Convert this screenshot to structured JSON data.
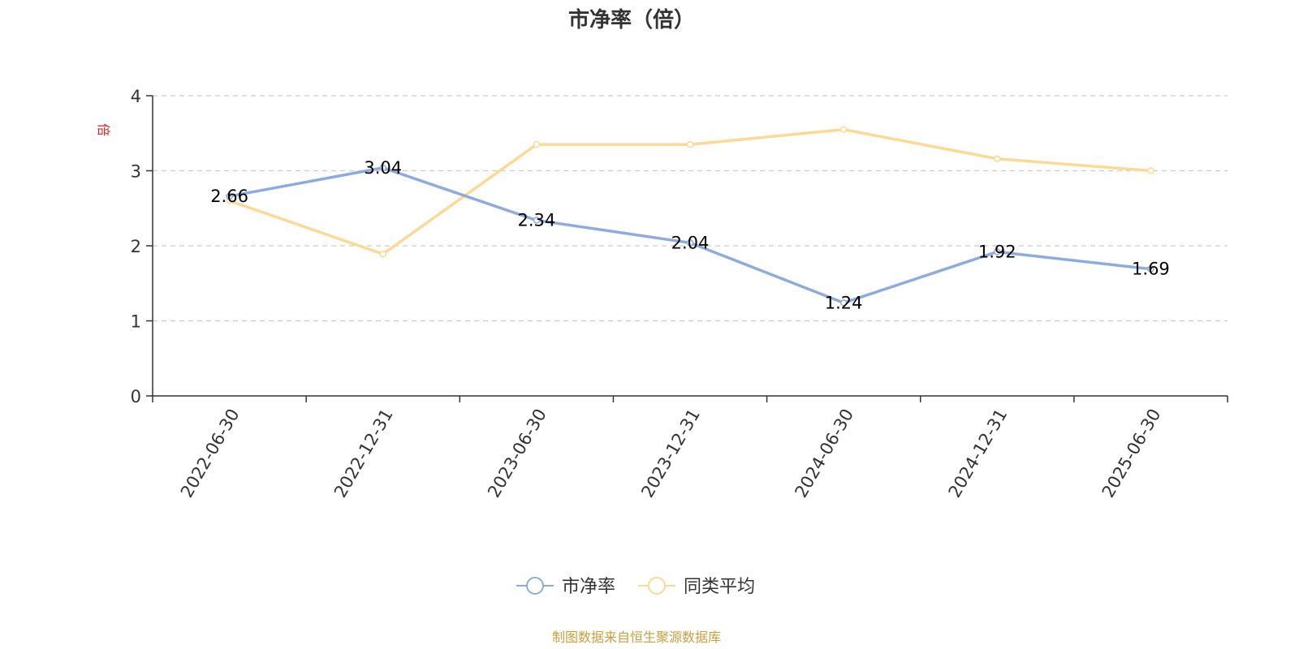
{
  "chart_data": {
    "type": "line",
    "title": "市净率（倍）",
    "unit_label": "倍",
    "x": [
      "2022-06-30",
      "2022-12-31",
      "2023-06-30",
      "2023-12-31",
      "2024-06-30",
      "2024-12-31",
      "2025-06-30"
    ],
    "ylim": [
      0,
      4
    ],
    "yticks": [
      "0",
      "1",
      "2",
      "3",
      "4"
    ],
    "grid": true,
    "legend_position": "bottom-center",
    "series": [
      {
        "name": "市净率",
        "color": "#8eacdb",
        "values": [
          2.66,
          3.04,
          2.34,
          2.04,
          1.24,
          1.92,
          1.69
        ],
        "labels": [
          "2.66",
          "3.04",
          "2.34",
          "2.04",
          "1.24",
          "1.92",
          "1.69"
        ]
      },
      {
        "name": "同类平均",
        "color": "#fbd997",
        "values": [
          2.6,
          1.89,
          3.35,
          3.35,
          3.55,
          3.16,
          3.0
        ]
      }
    ],
    "source": "制图数据来自恒生聚源数据库"
  },
  "colors": {
    "axis": "#333333",
    "grid": "#cccccc",
    "unit": "#e02020",
    "source": "#c8a040"
  }
}
